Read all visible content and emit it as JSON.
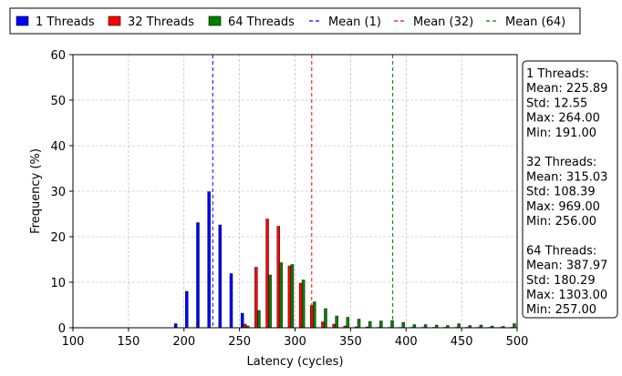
{
  "chart_data": {
    "type": "bar",
    "xlabel": "Latency (cycles)",
    "ylabel": "Frequency (%)",
    "xlim": [
      100,
      500
    ],
    "ylim": [
      0,
      60
    ],
    "x_ticks": [
      100,
      150,
      200,
      250,
      300,
      350,
      400,
      450,
      500
    ],
    "y_ticks": [
      0,
      10,
      20,
      30,
      40,
      50,
      60
    ],
    "grid": true,
    "legend_position": "top",
    "bin_width": 10,
    "bins": [
      195,
      205,
      215,
      225,
      235,
      245,
      255,
      265,
      275,
      285,
      295,
      305,
      315,
      325,
      335,
      345,
      355,
      365,
      375,
      385,
      395,
      405,
      415,
      425,
      435,
      445,
      455,
      465,
      475,
      485,
      495
    ],
    "series": [
      {
        "name": "1 Threads",
        "color": "#0000ff",
        "values": [
          0.9,
          8.0,
          23.1,
          29.9,
          22.6,
          11.9,
          3.2,
          0,
          0,
          0,
          0,
          0,
          0,
          0,
          0,
          0,
          0,
          0,
          0,
          0,
          0,
          0,
          0,
          0,
          0,
          0,
          0,
          0,
          0,
          0,
          0
        ]
      },
      {
        "name": "32 Threads",
        "color": "#ff0000",
        "values": [
          0,
          0,
          0,
          0,
          0,
          0,
          0.8,
          13.3,
          23.9,
          22.3,
          13.6,
          9.8,
          4.9,
          1.3,
          0.8,
          0.4,
          0.2,
          0.2,
          0.1,
          0.1,
          0.1,
          0.1,
          0.1,
          0.1,
          0.1,
          0.1,
          0.1,
          0.1,
          0.1,
          0.1,
          0.1
        ]
      },
      {
        "name": "64 Threads",
        "color": "#008000",
        "values": [
          0,
          0,
          0,
          0,
          0,
          0,
          0.4,
          3.8,
          11.6,
          14.3,
          13.9,
          10.5,
          5.7,
          4.2,
          2.6,
          2.3,
          1.9,
          1.4,
          1.5,
          1.6,
          1.2,
          0.7,
          0.7,
          0.6,
          0.5,
          0.9,
          0.5,
          0.6,
          0.4,
          0.3,
          0.9
        ]
      }
    ],
    "means": [
      {
        "name": "Mean (1)",
        "value": 225.89,
        "color": "#0000ff"
      },
      {
        "name": "Mean (32)",
        "value": 315.03,
        "color": "#ff0000"
      },
      {
        "name": "Mean (64)",
        "value": 387.97,
        "color": "#008000"
      }
    ],
    "stats_box": [
      "1 Threads:",
      "Mean: 225.89",
      "Std: 12.55",
      "Max: 264.00",
      "Min: 191.00",
      "",
      "32 Threads:",
      "Mean: 315.03",
      "Std: 108.39",
      "Max: 969.00",
      "Min: 256.00",
      "",
      "64 Threads:",
      "Mean: 387.97",
      "Std: 180.29",
      "Max: 1303.00",
      "Min: 257.00"
    ]
  }
}
